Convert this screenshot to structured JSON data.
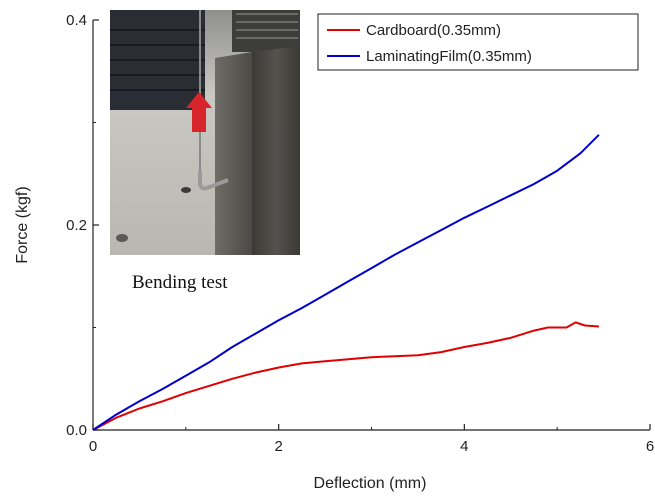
{
  "chart_data": {
    "type": "line",
    "xlabel": "Deflection (mm)",
    "ylabel": "Force (kgf)",
    "xlim": [
      0,
      6
    ],
    "ylim": [
      0,
      0.4
    ],
    "x_ticks": [
      "0",
      "2",
      "4",
      "6"
    ],
    "y_ticks": [
      "0.0",
      "0.2",
      "0.4"
    ],
    "grid": false,
    "legend_position": "top-right",
    "series": [
      {
        "name": "Cardboard(0.35mm)",
        "color": "#e00000",
        "points": [
          [
            0,
            0
          ],
          [
            0.25,
            0.012
          ],
          [
            0.5,
            0.021
          ],
          [
            0.75,
            0.028
          ],
          [
            1.0,
            0.036
          ],
          [
            1.25,
            0.043
          ],
          [
            1.5,
            0.05
          ],
          [
            1.75,
            0.056
          ],
          [
            2.0,
            0.061
          ],
          [
            2.25,
            0.065
          ],
          [
            2.5,
            0.067
          ],
          [
            2.75,
            0.069
          ],
          [
            3.0,
            0.071
          ],
          [
            3.25,
            0.072
          ],
          [
            3.5,
            0.073
          ],
          [
            3.75,
            0.076
          ],
          [
            4.0,
            0.081
          ],
          [
            4.25,
            0.085
          ],
          [
            4.5,
            0.09
          ],
          [
            4.75,
            0.097
          ],
          [
            4.9,
            0.1
          ],
          [
            5.1,
            0.1
          ],
          [
            5.2,
            0.105
          ],
          [
            5.3,
            0.102
          ],
          [
            5.45,
            0.101
          ]
        ]
      },
      {
        "name": "LaminatingFilm(0.35mm)",
        "color": "#0000cc",
        "points": [
          [
            0,
            0
          ],
          [
            0.25,
            0.015
          ],
          [
            0.5,
            0.028
          ],
          [
            0.75,
            0.04
          ],
          [
            1.0,
            0.053
          ],
          [
            1.25,
            0.066
          ],
          [
            1.5,
            0.081
          ],
          [
            1.75,
            0.094
          ],
          [
            2.0,
            0.107
          ],
          [
            2.25,
            0.119
          ],
          [
            2.5,
            0.132
          ],
          [
            2.75,
            0.145
          ],
          [
            3.0,
            0.158
          ],
          [
            3.25,
            0.171
          ],
          [
            3.5,
            0.183
          ],
          [
            3.75,
            0.195
          ],
          [
            4.0,
            0.207
          ],
          [
            4.25,
            0.218
          ],
          [
            4.5,
            0.229
          ],
          [
            4.75,
            0.24
          ],
          [
            5.0,
            0.253
          ],
          [
            5.25,
            0.27
          ],
          [
            5.45,
            0.288
          ]
        ]
      }
    ],
    "inset": {
      "caption": "Bending test",
      "image_colors": {
        "floor": "#c8c7c2",
        "block": "#4a4944",
        "dark": "#2a2c33",
        "arrow": "#d8252b"
      }
    }
  }
}
